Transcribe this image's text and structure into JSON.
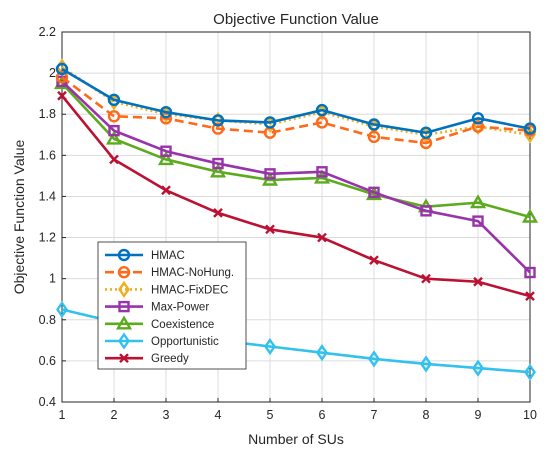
{
  "chart_data": {
    "type": "line",
    "title": "Objective Function Value",
    "xlabel": "Number of SUs",
    "ylabel": "Objective Function Value",
    "x": [
      1,
      2,
      3,
      4,
      5,
      6,
      7,
      8,
      9,
      10
    ],
    "xlim": [
      1,
      10
    ],
    "ylim": [
      0.4,
      2.2
    ],
    "xticks": [
      "1",
      "2",
      "3",
      "4",
      "5",
      "6",
      "7",
      "8",
      "9",
      "10"
    ],
    "yticks": [
      "0.4",
      "0.6",
      "0.8",
      "1",
      "1.2",
      "1.4",
      "1.6",
      "1.8",
      "2",
      "2.2"
    ],
    "ytick_values": [
      0.4,
      0.6,
      0.8,
      1.0,
      1.2,
      1.4,
      1.6,
      1.8,
      2.0,
      2.2
    ],
    "grid": true,
    "legend_position": "lower-left",
    "series": [
      {
        "name": "HMAC",
        "color": "#0072BD",
        "line_style": "solid",
        "marker": "circle",
        "values": [
          2.02,
          1.87,
          1.81,
          1.77,
          1.76,
          1.82,
          1.75,
          1.71,
          1.78,
          1.73
        ]
      },
      {
        "name": "HMAC-NoHung.",
        "color": "#FF6A1A",
        "line_style": "dashed",
        "marker": "circle",
        "values": [
          1.98,
          1.79,
          1.78,
          1.73,
          1.71,
          1.76,
          1.69,
          1.66,
          1.74,
          1.72
        ]
      },
      {
        "name": "HMAC-FixDEC",
        "color": "#EDB120",
        "line_style": "dotted",
        "marker": "diamond",
        "values": [
          2.03,
          1.86,
          1.8,
          1.77,
          1.75,
          1.81,
          1.74,
          1.7,
          1.74,
          1.7
        ]
      },
      {
        "name": "Max-Power",
        "color": "#9933AA",
        "line_style": "solid",
        "marker": "square",
        "values": [
          1.96,
          1.72,
          1.62,
          1.56,
          1.51,
          1.52,
          1.42,
          1.33,
          1.28,
          1.03
        ]
      },
      {
        "name": "Coexistence",
        "color": "#5CAA1E",
        "line_style": "solid",
        "marker": "triangle",
        "values": [
          1.95,
          1.68,
          1.58,
          1.52,
          1.48,
          1.49,
          1.41,
          1.35,
          1.37,
          1.3
        ]
      },
      {
        "name": "Opportunistic",
        "color": "#33C1EE",
        "line_style": "solid",
        "marker": "diamond",
        "values": [
          0.85,
          0.79,
          0.74,
          0.7,
          0.67,
          0.64,
          0.61,
          0.585,
          0.565,
          0.545
        ]
      },
      {
        "name": "Greedy",
        "color": "#BB1133",
        "line_style": "solid",
        "marker": "x",
        "values": [
          1.89,
          1.58,
          1.43,
          1.32,
          1.24,
          1.2,
          1.09,
          1.0,
          0.985,
          0.915
        ]
      }
    ]
  }
}
